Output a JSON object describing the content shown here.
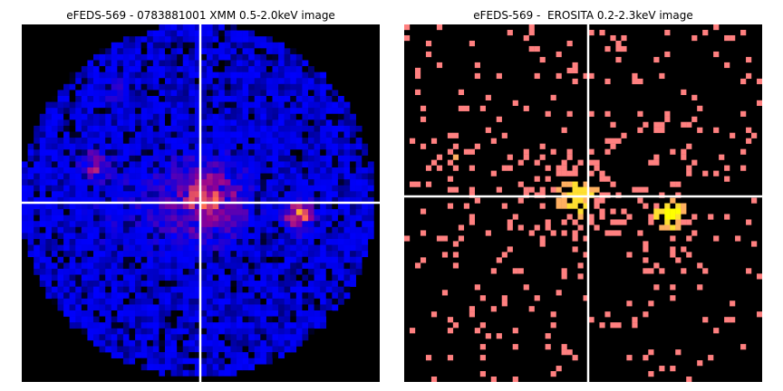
{
  "panels": [
    {
      "title": "eFEDS-569 - 0783881001 XMM 0.5-2.0keV image",
      "instrument": "XMM",
      "energy_band": "0.5-2.0keV",
      "colormap": "gnuplot2",
      "background_color": "#000000",
      "crosshair_color": "#ffffff"
    },
    {
      "title": "eFEDS-569 -  EROSITA 0.2-2.3keV image",
      "instrument": "EROSITA",
      "energy_band": "0.2-2.3keV",
      "colormap": "sparse-counts",
      "background_color": "#000000",
      "crosshair_color": "#ffffff",
      "pixel_colors": [
        "#ff8080",
        "#ffb060",
        "#ffe030",
        "#ffff00"
      ]
    }
  ]
}
